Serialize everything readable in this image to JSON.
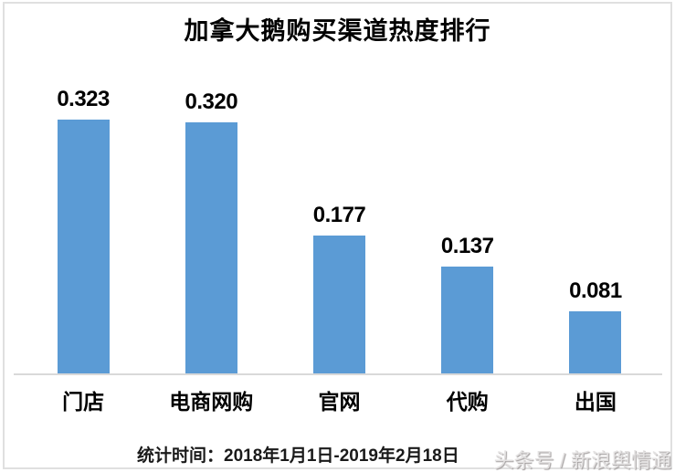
{
  "chart_data": {
    "type": "bar",
    "title": "加拿大鹅购买渠道热度排行",
    "categories": [
      "门店",
      "电商网购",
      "官网",
      "代购",
      "出国"
    ],
    "values": [
      0.323,
      0.32,
      0.177,
      0.137,
      0.081
    ],
    "value_labels": [
      "0.323",
      "0.320",
      "0.177",
      "0.137",
      "0.081"
    ],
    "xlabel": "",
    "ylabel": "",
    "ylim": [
      0,
      0.35
    ],
    "grid": false,
    "legend": false,
    "bar_color": "#5b9bd5",
    "axis_line_color": "#d9d9d9",
    "label_color": "#000000"
  },
  "footer": {
    "stats_time_label": "统计时间：2018年1月1日-2019年2月18日",
    "watermark": "头条号 / 新浪舆情通"
  },
  "colors": {
    "bar": "#5b9bd5",
    "axis_line": "#d9d9d9",
    "frame_border": "#e0e0e0",
    "text": "#000000",
    "watermark_text": "#e3e1e1"
  }
}
